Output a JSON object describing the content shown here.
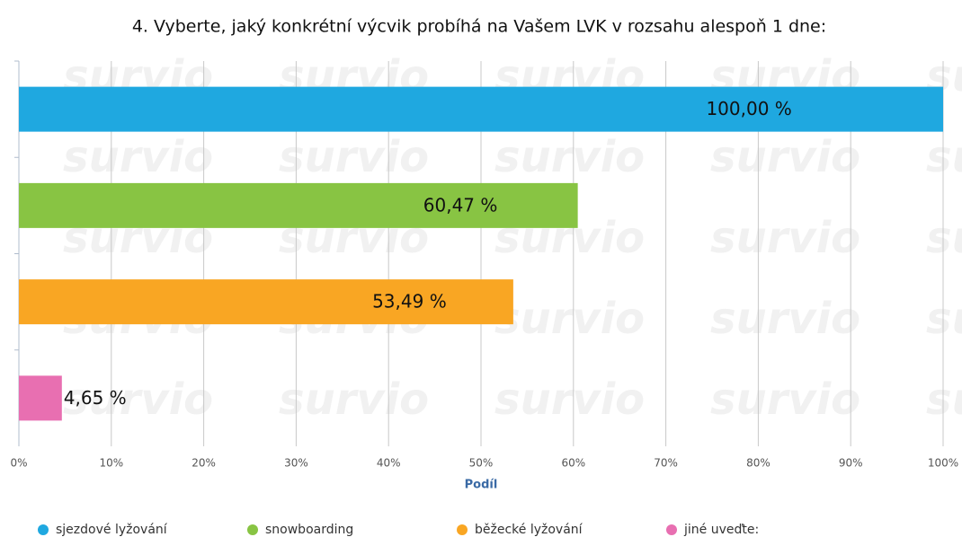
{
  "chart_data": {
    "type": "hbar",
    "title": "4. Vyberte, jaký konkrétní výcvik probíhá na Vašem LVK v rozsahu alespoň 1 dne:",
    "watermark": "survio",
    "x_label": "Podíl",
    "series": [
      {
        "name": "sjezdové lyžování",
        "color": "#1fa8e0",
        "values": [
          100
        ],
        "value_labels": [
          "100,00 %"
        ]
      },
      {
        "name": "snowboarding",
        "color": "#88c443",
        "values": [
          60.47
        ],
        "value_labels": [
          "60,47 %"
        ]
      },
      {
        "name": "běžecké lyžování",
        "color": "#f9a623",
        "values": [
          53.49
        ],
        "value_labels": [
          "53,49 %"
        ]
      },
      {
        "name": "jiné uveďte:",
        "color": "#e86fb1",
        "values": [
          4.65
        ],
        "value_labels": [
          "4,65 %"
        ]
      }
    ],
    "xlim": [
      0,
      100
    ],
    "xticks": [
      {
        "value": 0,
        "label": "0%"
      },
      {
        "value": 10,
        "label": "10%"
      },
      {
        "value": 20,
        "label": "20%"
      },
      {
        "value": 30,
        "label": "30%"
      },
      {
        "value": 40,
        "label": "40%"
      },
      {
        "value": 50,
        "label": "50%"
      },
      {
        "value": 60,
        "label": "60%"
      },
      {
        "value": 70,
        "label": "70%"
      },
      {
        "value": 80,
        "label": "80%"
      },
      {
        "value": 90,
        "label": "90%"
      },
      {
        "value": 100,
        "label": "100%"
      }
    ],
    "grid": true
  }
}
